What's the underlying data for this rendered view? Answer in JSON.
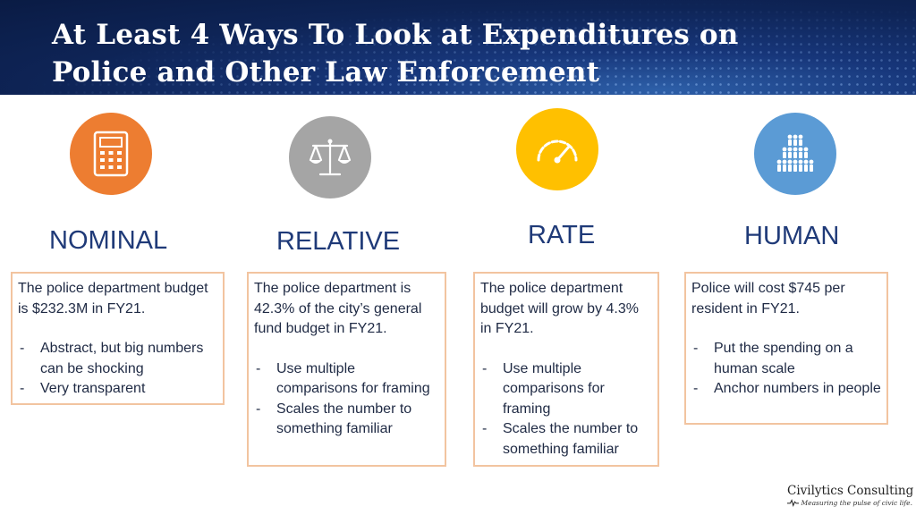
{
  "slide": {
    "title_line1": "At Least 4 Ways To Look at Expenditures on",
    "title_line2": "Police and Other Law Enforcement"
  },
  "columns": [
    {
      "title": "NOMINAL",
      "icon": "calculator-icon",
      "icon_color": "#ed7d31",
      "text": "The police department budget is $232.3M in FY21.",
      "bullets": [
        "Abstract, but big numbers can be shocking",
        "Very transparent"
      ]
    },
    {
      "title": "RELATIVE",
      "icon": "scales-icon",
      "icon_color": "#a5a5a5",
      "text": "The police department is 42.3% of the city’s general fund budget in FY21.",
      "bullets": [
        "Use multiple comparisons for framing",
        "Scales the number to something familiar"
      ]
    },
    {
      "title": "RATE",
      "icon": "speedometer-icon",
      "icon_color": "#ffc000",
      "text": "The police department budget will grow by 4.3% in FY21.",
      "bullets": [
        "Use multiple comparisons for framing",
        "Scales the number to something familiar"
      ]
    },
    {
      "title": "HUMAN",
      "icon": "people-crowd-icon",
      "icon_color": "#5b9bd5",
      "text": "Police will cost $745 per resident in FY21.",
      "bullets": [
        "Put the spending on a human scale",
        "Anchor numbers in people"
      ]
    }
  ],
  "brand": {
    "name": "Civilytics Consulting",
    "tagline": "Measuring the pulse of civic life."
  },
  "colors": {
    "header_bg": "#0e2456",
    "title_text": "#ffffff",
    "column_title": "#1f3a78",
    "card_border": "#f2c4a0"
  }
}
